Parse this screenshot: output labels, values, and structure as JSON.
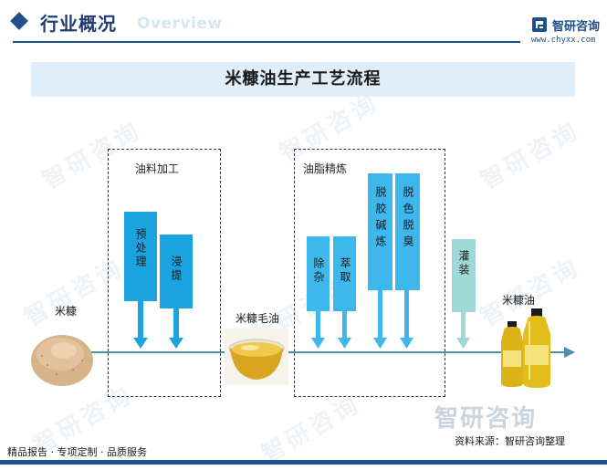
{
  "header": {
    "section_title": "行业概况",
    "section_subtitle": "Overview",
    "brand_name": "智研咨询",
    "brand_url": "www.chyxx.com"
  },
  "diagram": {
    "title": "米糠油生产工艺流程",
    "input_label": "米糠",
    "intermediate_label": "米糠毛油",
    "output_label": "米糠油",
    "groups": [
      {
        "label": "油料加工",
        "steps": [
          "预处理",
          "浸提"
        ]
      },
      {
        "label": "油脂精炼",
        "steps": [
          "除杂",
          "萃取",
          "脱胶碱炼",
          "脱色脱臭"
        ]
      }
    ],
    "final_step": "灌装"
  },
  "footer": {
    "tagline": "精品报告 · 专项定制 · 品质服务",
    "source": "资料来源：智研咨询整理",
    "watermark_logo": "智研咨询"
  },
  "colors": {
    "primary_blue": "#1f4e8c",
    "box_blue": "#3eb7ec",
    "box_blue_dark": "#1aa3df",
    "box_teal": "#9fd8d8",
    "banner_bg": "#dfeef8",
    "flow_line": "#4a8fa8"
  }
}
